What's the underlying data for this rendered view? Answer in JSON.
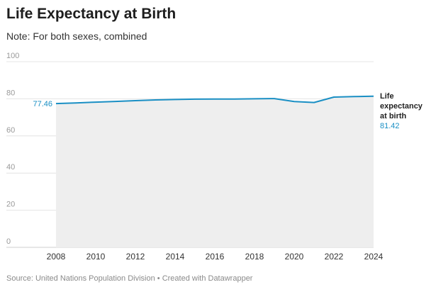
{
  "title": "Life Expectancy at Birth",
  "subtitle": "Note: For both sexes, combined",
  "source": "Source: United Nations Population Division • Created with Datawrapper",
  "colors": {
    "line": "#1a8fc4",
    "area": "#eeeeee",
    "grid": "#e4e4e4",
    "tick_text": "#999999",
    "axis_text": "#333333"
  },
  "chart_data": {
    "type": "area",
    "title": "Life Expectancy at Birth",
    "subtitle": "Note: For both sexes, combined",
    "xlabel": "",
    "ylabel": "",
    "xlim": [
      2008,
      2024
    ],
    "ylim": [
      0,
      100
    ],
    "yticks": [
      0,
      20,
      40,
      60,
      80,
      100
    ],
    "xticks": [
      2008,
      2010,
      2012,
      2014,
      2016,
      2018,
      2020,
      2022,
      2024
    ],
    "grid": true,
    "series": [
      {
        "name": "Life expectancy at birth",
        "x": [
          2008,
          2009,
          2010,
          2011,
          2012,
          2013,
          2014,
          2015,
          2016,
          2017,
          2018,
          2019,
          2020,
          2021,
          2022,
          2023,
          2024
        ],
        "values": [
          77.46,
          77.8,
          78.2,
          78.6,
          79.0,
          79.4,
          79.6,
          79.8,
          79.9,
          79.9,
          80.0,
          80.1,
          78.5,
          78.0,
          80.9,
          81.2,
          81.42
        ]
      }
    ],
    "start_label": "77.46",
    "end_label": {
      "lines": [
        "Life",
        "expectancy",
        "at birth"
      ],
      "value": "81.42"
    }
  }
}
